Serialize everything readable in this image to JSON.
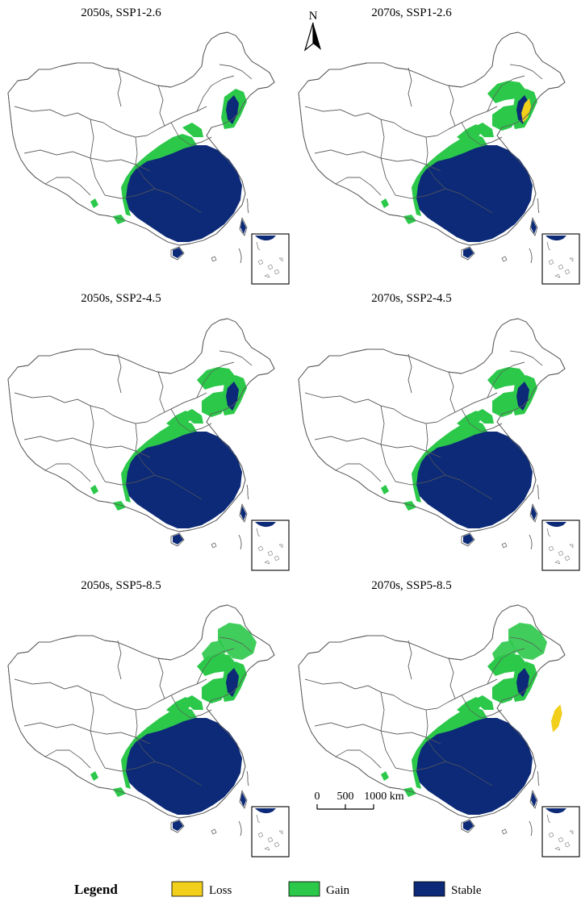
{
  "north_label": "N",
  "panels": [
    {
      "title": "2050s, SSP1-2.6",
      "gain_level": 0.45,
      "loss_level": 0.0
    },
    {
      "title": "2070s, SSP1-2.6",
      "gain_level": 0.55,
      "loss_level": 0.25
    },
    {
      "title": "2050s, SSP2-4.5",
      "gain_level": 0.55,
      "loss_level": 0.05
    },
    {
      "title": "2070s, SSP2-4.5",
      "gain_level": 0.5,
      "loss_level": 0.0
    },
    {
      "title": "2050s, SSP5-8.5",
      "gain_level": 0.85,
      "loss_level": 0.0
    },
    {
      "title": "2070s, SSP5-8.5",
      "gain_level": 0.95,
      "loss_level": 0.6
    }
  ],
  "scale_bar": {
    "ticks": [
      "0",
      "500",
      "1000 km"
    ]
  },
  "legend": {
    "title": "Legend",
    "items": [
      {
        "label": "Loss",
        "color": "#f2cf1a"
      },
      {
        "label": "Gain",
        "color": "#2cc84a"
      },
      {
        "label": "Stable",
        "color": "#0c2a77"
      }
    ]
  },
  "colors": {
    "loss": "#f2cf1a",
    "gain": "#2cc84a",
    "stable": "#0c2a77",
    "boundary": "#6a6a6a"
  }
}
